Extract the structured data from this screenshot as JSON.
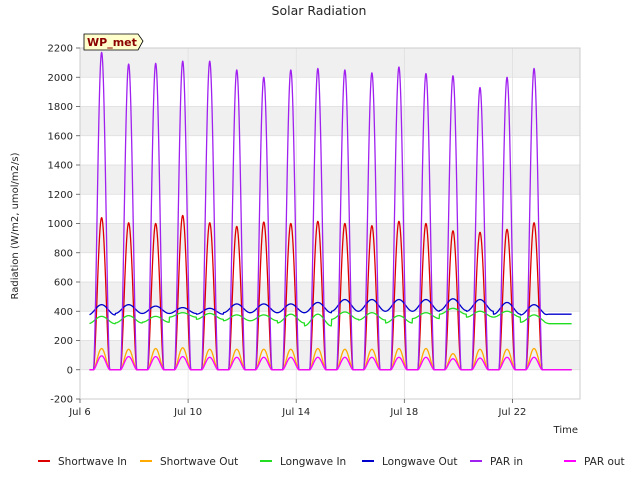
{
  "chart_data": {
    "type": "line",
    "title": "Solar Radiation",
    "site_label": "WP_met",
    "xlabel": "Time",
    "ylabel": "Radiation (W/m2, umol/m2/s)",
    "ylim": [
      -200,
      2200
    ],
    "xlim": [
      6.0,
      24.5
    ],
    "y_ticks": [
      -200,
      0,
      200,
      400,
      600,
      800,
      1000,
      1200,
      1400,
      1600,
      1800,
      2000,
      2200
    ],
    "x_ticks": [
      {
        "value": 6,
        "label": "Jul 6"
      },
      {
        "value": 10,
        "label": "Jul 10"
      },
      {
        "value": 14,
        "label": "Jul 14"
      },
      {
        "value": 18,
        "label": "Jul 18"
      },
      {
        "value": 22,
        "label": "Jul 22"
      }
    ],
    "grid": true,
    "legend_position": "bottom",
    "days": [
      6.8,
      7.8,
      8.8,
      9.8,
      10.8,
      11.8,
      12.8,
      13.8,
      14.8,
      15.8,
      16.8,
      17.8,
      18.8,
      19.8,
      20.8,
      21.8,
      22.8
    ],
    "series": [
      {
        "name": "Shortwave In",
        "color": "#dd0000",
        "kind": "diurnal",
        "base": 0,
        "peaks": [
          1040,
          1005,
          1000,
          1055,
          1005,
          980,
          1010,
          1000,
          1015,
          1000,
          985,
          1015,
          1000,
          950,
          940,
          960,
          1005
        ]
      },
      {
        "name": "Shortwave Out",
        "color": "#ffaa00",
        "kind": "diurnal",
        "base": 0,
        "peaks": [
          145,
          140,
          145,
          150,
          140,
          140,
          140,
          140,
          145,
          140,
          140,
          145,
          145,
          110,
          140,
          140,
          145
        ]
      },
      {
        "name": "Longwave In",
        "color": "#22dd22",
        "kind": "wave",
        "means": [
          340,
          345,
          345,
          375,
          365,
          355,
          355,
          350,
          340,
          370,
          365,
          345,
          370,
          400,
          380,
          380,
          350
        ],
        "amps": [
          25,
          25,
          20,
          15,
          20,
          20,
          20,
          30,
          40,
          25,
          25,
          25,
          20,
          20,
          20,
          20,
          25
        ],
        "end_value": 315
      },
      {
        "name": "Longwave Out",
        "color": "#0000cc",
        "kind": "wave",
        "means": [
          410,
          415,
          410,
          405,
          400,
          420,
          420,
          420,
          425,
          440,
          440,
          440,
          440,
          445,
          440,
          420,
          410
        ],
        "amps": [
          35,
          30,
          25,
          20,
          20,
          30,
          30,
          30,
          35,
          40,
          40,
          40,
          40,
          40,
          40,
          40,
          35
        ],
        "end_value": 380
      },
      {
        "name": "PAR in",
        "color": "#a020f0",
        "kind": "diurnal",
        "base": 0,
        "peaks": [
          2170,
          2090,
          2095,
          2110,
          2110,
          2050,
          2000,
          2050,
          2060,
          2050,
          2030,
          2070,
          2025,
          2010,
          1930,
          2000,
          2060
        ]
      },
      {
        "name": "PAR out",
        "color": "#ff00ff",
        "kind": "diurnal",
        "base": 0,
        "peaks": [
          95,
          90,
          90,
          90,
          85,
          85,
          85,
          85,
          85,
          85,
          85,
          85,
          85,
          75,
          80,
          85,
          85
        ]
      }
    ]
  }
}
